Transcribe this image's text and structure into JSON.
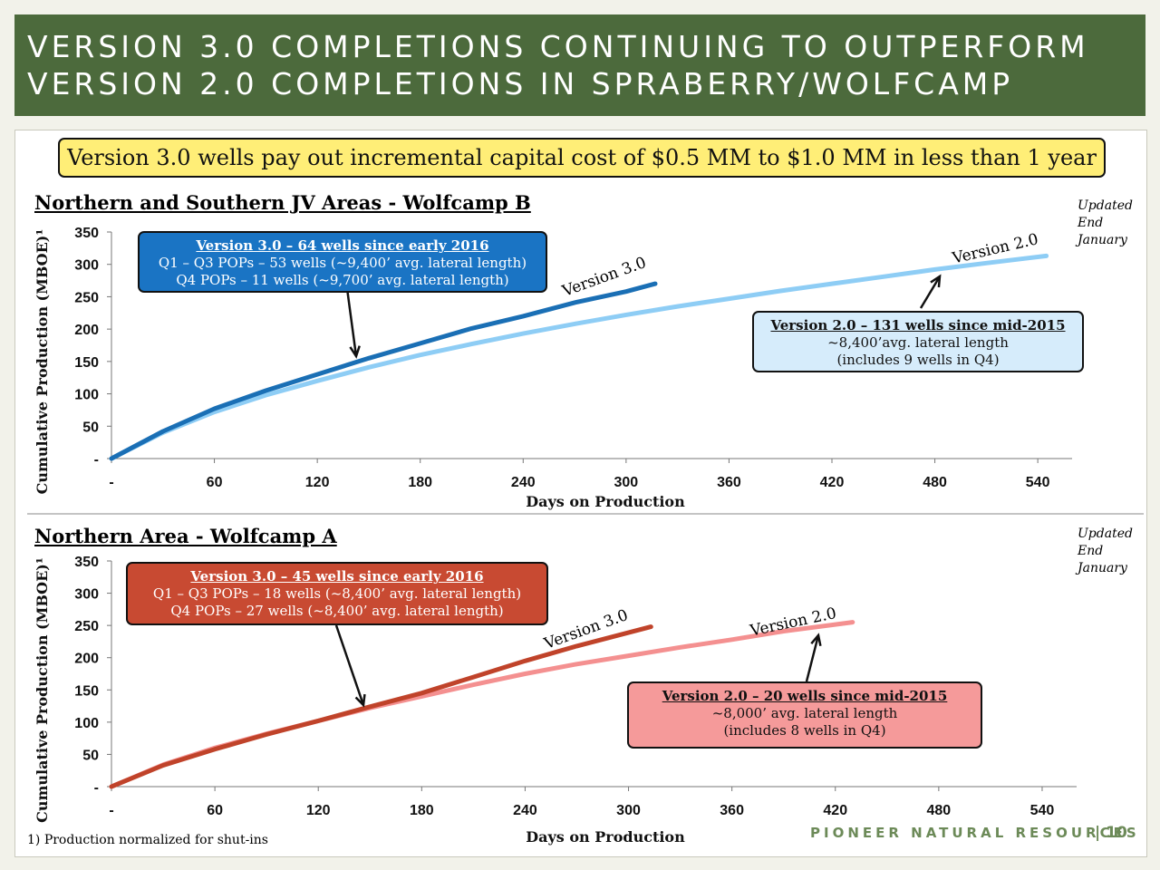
{
  "title": {
    "line1": "VERSION 3.0 COMPLETIONS CONTINUING TO OUTPERFORM",
    "line2": "VERSION 2.0 COMPLETIONS IN SPRABERRY/WOLFCAMP"
  },
  "banner": "Version 3.0 wells pay out incremental capital cost of $0.5 MM to $1.0 MM in less than 1 year",
  "updated_note": [
    "Updated",
    "End",
    "January"
  ],
  "footnote": "1)  Production normalized for shut-ins",
  "logo": "PIONEER NATURAL RESOURCES",
  "page_number": "| 10",
  "colors": {
    "title_bg": "#4c6a3c",
    "v3_top": "#1a6fb5",
    "v2_top": "#8ecdf5",
    "v3_bottom": "#c0432a",
    "v2_bottom": "#f49090",
    "box_v3_top": "#1a74c4",
    "box_v2_top": "#d6ecfb",
    "box_v3_bottom": "#c84a32",
    "box_v2_bottom": "#f59a9a"
  },
  "panels": [
    {
      "title": "Northern and Southern JV Areas - Wolfcamp B",
      "boxes": [
        {
          "head": "Version 3.0 – 64 wells since early 2016",
          "lines": [
            "Q1 – Q3 POPs – 53 wells (~9,400’ avg. lateral length)",
            "Q4 POPs – 11 wells (~9,700’ avg. lateral length)"
          ]
        },
        {
          "head": "Version 2.0 – 131 wells since mid-2015",
          "lines": [
            "~8,400’avg. lateral length",
            "(includes 9 wells in Q4)"
          ]
        }
      ],
      "curve_labels": [
        "Version 3.0",
        "Version 2.0"
      ]
    },
    {
      "title": "Northern Area - Wolfcamp A",
      "boxes": [
        {
          "head": "Version 3.0 – 45 wells since early 2016",
          "lines": [
            "Q1 – Q3 POPs – 18 wells (~8,400’ avg. lateral length)",
            "Q4 POPs –  27 wells (~8,400’ avg. lateral length)"
          ]
        },
        {
          "head": "Version 2.0 – 20 wells since mid-2015",
          "lines": [
            "~8,000’ avg. lateral length",
            "(includes 8 wells in Q4)"
          ]
        }
      ],
      "curve_labels": [
        "Version 3.0",
        "Version 2.0"
      ]
    }
  ],
  "chart_data": [
    {
      "type": "line",
      "title": "Northern and Southern JV Areas - Wolfcamp B",
      "xlabel": "Days on Production",
      "ylabel": "Cumulative  Production (MBOE)¹",
      "xlim": [
        0,
        560
      ],
      "ylim": [
        0,
        350
      ],
      "xticks": [
        "-",
        "60",
        "120",
        "180",
        "240",
        "300",
        "360",
        "420",
        "480",
        "540"
      ],
      "yticks": [
        "-",
        "50",
        "100",
        "150",
        "200",
        "250",
        "300",
        "350"
      ],
      "series": [
        {
          "name": "Version 2.0",
          "x": [
            0,
            30,
            60,
            90,
            120,
            150,
            180,
            210,
            240,
            270,
            300,
            330,
            360,
            390,
            420,
            450,
            480,
            510,
            545
          ],
          "y": [
            0,
            40,
            72,
            98,
            120,
            141,
            160,
            177,
            193,
            208,
            222,
            235,
            247,
            259,
            270,
            281,
            292,
            302,
            313
          ]
        },
        {
          "name": "Version 3.0",
          "x": [
            0,
            30,
            60,
            90,
            120,
            150,
            180,
            210,
            240,
            270,
            300,
            317
          ],
          "y": [
            0,
            42,
            77,
            105,
            130,
            155,
            178,
            201,
            220,
            241,
            258,
            270
          ]
        }
      ]
    },
    {
      "type": "line",
      "title": "Northern Area - Wolfcamp A",
      "xlabel": "Days on Production",
      "ylabel": "Cumulative  Production (MBOE)¹",
      "xlim": [
        0,
        560
      ],
      "ylim": [
        0,
        350
      ],
      "xticks": [
        "-",
        "60",
        "120",
        "180",
        "240",
        "300",
        "360",
        "420",
        "480",
        "540"
      ],
      "yticks": [
        "-",
        "50",
        "100",
        "150",
        "200",
        "250",
        "300",
        "350"
      ],
      "series": [
        {
          "name": "Version 2.0",
          "x": [
            0,
            30,
            60,
            90,
            120,
            150,
            180,
            210,
            240,
            270,
            300,
            330,
            360,
            390,
            430
          ],
          "y": [
            0,
            34,
            60,
            82,
            102,
            122,
            140,
            158,
            175,
            190,
            203,
            216,
            228,
            241,
            255
          ]
        },
        {
          "name": "Version 3.0",
          "x": [
            0,
            30,
            60,
            90,
            120,
            150,
            180,
            210,
            240,
            270,
            313
          ],
          "y": [
            0,
            33,
            58,
            81,
            102,
            124,
            145,
            170,
            195,
            218,
            248
          ]
        }
      ]
    }
  ]
}
